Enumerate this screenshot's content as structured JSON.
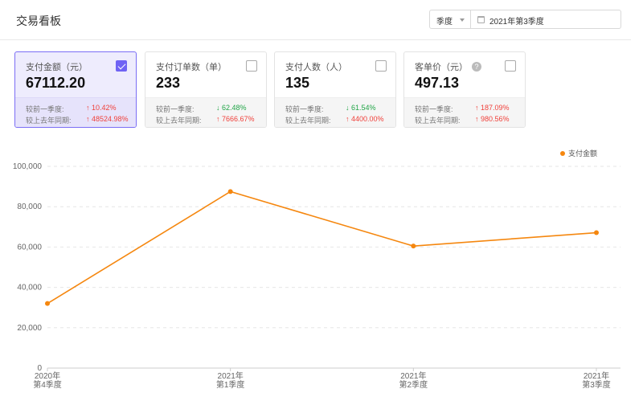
{
  "header": {
    "title": "交易看板",
    "period_select": "季度",
    "date_value": "2021年第3季度"
  },
  "cards": [
    {
      "label": "支付金额（元）",
      "value": "67112.20",
      "checked": true,
      "help": false,
      "prev_label": "较前一季度:",
      "prev_value": "10.42%",
      "prev_dir": "up",
      "yoy_label": "较上去年同期:",
      "yoy_value": "48524.98%",
      "yoy_dir": "up"
    },
    {
      "label": "支付订单数（单）",
      "value": "233",
      "checked": false,
      "help": false,
      "prev_label": "较前一季度:",
      "prev_value": "62.48%",
      "prev_dir": "down",
      "yoy_label": "较上去年同期:",
      "yoy_value": "7666.67%",
      "yoy_dir": "up"
    },
    {
      "label": "支付人数（人）",
      "value": "135",
      "checked": false,
      "help": false,
      "prev_label": "较前一季度:",
      "prev_value": "61.54%",
      "prev_dir": "down",
      "yoy_label": "较上去年同期:",
      "yoy_value": "4400.00%",
      "yoy_dir": "up"
    },
    {
      "label": "客单价（元）",
      "value": "497.13",
      "checked": false,
      "help": true,
      "prev_label": "较前一季度:",
      "prev_value": "187.09%",
      "prev_dir": "up",
      "yoy_label": "较上去年同期:",
      "yoy_value": "980.56%",
      "yoy_dir": "up"
    }
  ],
  "arrows": {
    "up": "↑",
    "down": "↓"
  },
  "help_icon": "?",
  "colors": {
    "accent": "#6f63f4",
    "series": "#f5870f",
    "up": "#f0413b",
    "down": "#22a548"
  },
  "chart_data": {
    "type": "line",
    "categories": [
      [
        "2020年",
        "第4季度"
      ],
      [
        "2021年",
        "第1季度"
      ],
      [
        "2021年",
        "第2季度"
      ],
      [
        "2021年",
        "第3季度"
      ]
    ],
    "series": [
      {
        "name": "支付金额",
        "values": [
          32000,
          87500,
          60500,
          67112.2
        ]
      }
    ],
    "ylim": [
      0,
      100000
    ],
    "yticks": [
      "0",
      "20,000",
      "40,000",
      "60,000",
      "80,000",
      "100,000"
    ],
    "grid": true,
    "legend": "top-right"
  }
}
